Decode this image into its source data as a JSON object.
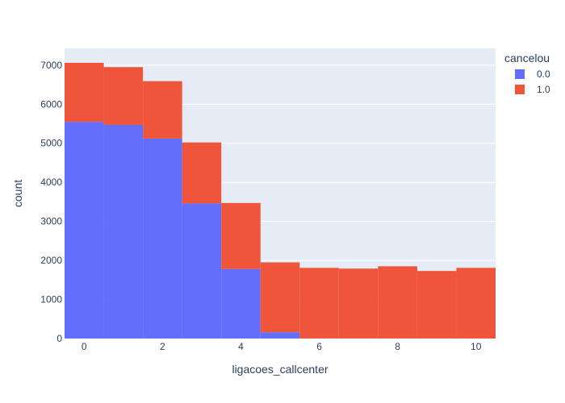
{
  "chart_data": {
    "type": "bar",
    "barmode": "stack",
    "xlabel": "ligacoes_callcenter",
    "ylabel": "count",
    "xlim": [
      -0.5,
      10.5
    ],
    "ylim": [
      0,
      7430
    ],
    "x_ticks": [
      0,
      2,
      4,
      6,
      8,
      10
    ],
    "y_ticks": [
      0,
      1000,
      2000,
      3000,
      4000,
      5000,
      6000,
      7000
    ],
    "grid": true,
    "legend": {
      "title": "cancelou",
      "position": "top-right"
    },
    "categories": [
      0,
      1,
      2,
      3,
      4,
      5,
      6,
      7,
      8,
      9,
      10
    ],
    "series": [
      {
        "name": "0.0",
        "color": "#636efa",
        "values": [
          5550,
          5470,
          5120,
          3460,
          1780,
          160,
          0,
          0,
          0,
          0,
          0
        ]
      },
      {
        "name": "1.0",
        "color": "#ef553b",
        "values": [
          1510,
          1480,
          1470,
          1560,
          1690,
          1790,
          1810,
          1790,
          1850,
          1730,
          1810
        ]
      }
    ],
    "colors": {
      "plot_background": "#e5ecf6",
      "grid": "#ffffff",
      "text": "#2a3f5f"
    }
  }
}
